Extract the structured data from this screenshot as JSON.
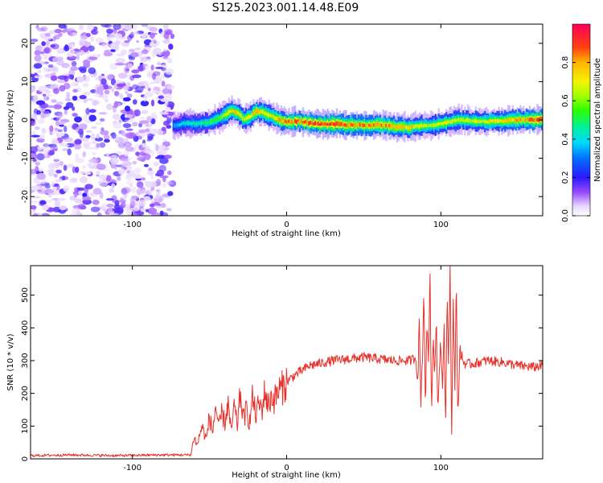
{
  "figure_title": "S125.2023.001.14.48.E09",
  "chart_data": [
    {
      "type": "heatmap",
      "id": "spectrogram",
      "xlabel": "Height of straight line (km)",
      "ylabel": "Frequency (Hz)",
      "xlim": [
        -166,
        166
      ],
      "ylim": [
        -25,
        25
      ],
      "xticks": [
        -100,
        0,
        100
      ],
      "yticks": [
        -20,
        -10,
        0,
        10,
        20
      ],
      "colorbar": {
        "label": "Normalized spectral amplitude",
        "range": [
          0,
          1
        ],
        "ticks": [
          0.0,
          0.2,
          0.4,
          0.6,
          0.8
        ],
        "colormap": "gist_ncar_like"
      },
      "noise_region_x": [
        -166,
        -74
      ],
      "signal_trace": {
        "x": [
          -74,
          -65,
          -58,
          -50,
          -44,
          -40,
          -36,
          -32,
          -28,
          -24,
          -20,
          -16,
          -12,
          -8,
          -4,
          0,
          8,
          16,
          24,
          32,
          40,
          50,
          60,
          70,
          80,
          86,
          92,
          100,
          110,
          120,
          130,
          140,
          150,
          160,
          166
        ],
        "y": [
          -1.5,
          -0.8,
          -1.0,
          -0.5,
          0.5,
          1.5,
          2.5,
          1.8,
          0.2,
          1.0,
          2.3,
          2.0,
          1.2,
          0.6,
          0.0,
          -0.5,
          -0.3,
          -0.9,
          -1.1,
          -1.0,
          -1.3,
          -1.4,
          -1.2,
          -1.8,
          -2.0,
          -1.5,
          -1.4,
          -1.0,
          0.0,
          -0.2,
          -0.4,
          -0.2,
          0.0,
          0.1,
          0.2
        ],
        "peak_amplitude": [
          0.35,
          0.45,
          0.5,
          0.55,
          0.6,
          0.75,
          0.85,
          0.8,
          0.7,
          0.75,
          0.85,
          0.8,
          0.75,
          0.8,
          0.85,
          0.9,
          0.92,
          0.95,
          0.98,
          0.95,
          0.9,
          0.9,
          0.88,
          0.85,
          0.8,
          0.75,
          0.7,
          0.75,
          0.7,
          0.72,
          0.75,
          0.8,
          0.85,
          0.92,
          0.98
        ]
      }
    },
    {
      "type": "line",
      "id": "snr",
      "xlabel": "Height of straight line (km)",
      "ylabel": "SNR (10 * v/v)",
      "xlim": [
        -166,
        166
      ],
      "ylim": [
        0,
        590
      ],
      "xticks": [
        -100,
        0,
        100
      ],
      "yticks": [
        0,
        100,
        200,
        300,
        400,
        500
      ],
      "color": "#e8302a",
      "series": [
        {
          "x": [
            -166,
            -140,
            -110,
            -80,
            -62,
            -60,
            -58,
            -55,
            -52,
            -50,
            -48,
            -46,
            -44,
            -42,
            -40,
            -38,
            -36,
            -34,
            -32,
            -30,
            -28,
            -26,
            -24,
            -22,
            -20,
            -18,
            -16,
            -14,
            -12,
            -10,
            -8,
            -5,
            -2,
            0,
            5,
            10,
            15,
            20,
            25,
            30,
            40,
            50,
            60,
            70,
            80,
            84,
            85,
            86,
            87,
            88,
            89,
            90,
            91,
            92,
            93,
            94,
            95,
            96,
            97,
            98,
            99,
            100,
            101,
            102,
            103,
            104,
            105,
            106,
            107,
            108,
            109,
            110,
            111,
            112,
            113,
            114,
            116,
            120,
            130,
            140,
            150,
            160,
            166
          ],
          "y": [
            10,
            12,
            10,
            12,
            12,
            70,
            40,
            100,
            60,
            130,
            80,
            165,
            90,
            140,
            110,
            170,
            80,
            160,
            100,
            200,
            120,
            150,
            110,
            190,
            130,
            170,
            150,
            210,
            160,
            190,
            180,
            210,
            220,
            235,
            255,
            270,
            285,
            290,
            295,
            300,
            305,
            310,
            305,
            300,
            300,
            310,
            240,
            410,
            180,
            300,
            530,
            150,
            420,
            310,
            560,
            120,
            380,
            260,
            450,
            140,
            300,
            360,
            200,
            420,
            80,
            500,
            300,
            590,
            60,
            480,
            200,
            560,
            100,
            300,
            330,
            300,
            290,
            290,
            300,
            295,
            285,
            280,
            285
          ]
        }
      ]
    }
  ]
}
